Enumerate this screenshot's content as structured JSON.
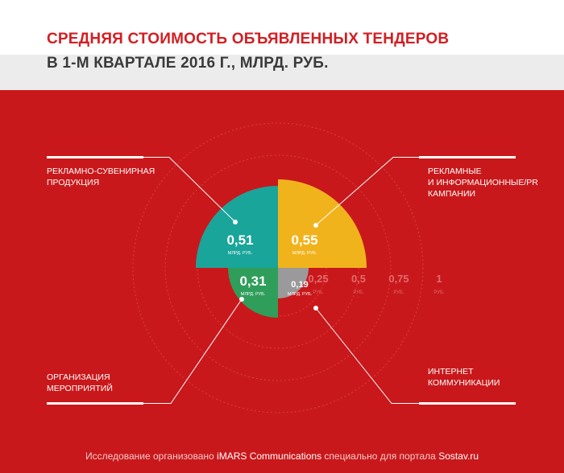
{
  "title_line1": "СРЕДНЯЯ СТОИМОСТЬ ОБЪЯВЛЕННЫХ ТЕНДЕРОВ",
  "title_line2": "В 1-М КВАРТАЛЕ 2016 Г., МЛРД. РУБ.",
  "footer": {
    "prefix": "Исследование организовано ",
    "org": "iMARS Communications",
    "middle": " специально для портала ",
    "site": "Sostav.ru"
  },
  "colors": {
    "background": "#cf1a1d",
    "teal": "#1aa59b",
    "yellow": "#f1b31c",
    "green": "#2f9e5a",
    "gray": "#9a9a9a"
  },
  "chart_data": {
    "type": "polar-area",
    "unit": "МЛРД. РУБ.",
    "max": 1,
    "slices": [
      {
        "label": "РЕКЛАМНЫЕ И ИНФОРМАЦИОННЫЕ/PR КАМПАНИИ",
        "label_lines": [
          "РЕКЛАМНЫЕ",
          "И ИНФОРМАЦИОННЫЕ/PR",
          "КАМПАНИИ"
        ],
        "value": 0.55,
        "value_text": "0,55",
        "color": "#f1b31c",
        "quadrant": "top-right"
      },
      {
        "label": "РЕКЛАМНО-СУВЕНИРНАЯ ПРОДУКЦИЯ",
        "label_lines": [
          "РЕКЛАМНО-СУВЕНИРНАЯ",
          "ПРОДУКЦИЯ"
        ],
        "value": 0.51,
        "value_text": "0,51",
        "color": "#1aa59b",
        "quadrant": "top-left"
      },
      {
        "label": "ОРГАНИЗАЦИЯ МЕРОПРИЯТИЙ",
        "label_lines": [
          "ОРГАНИЗАЦИЯ",
          "МЕРОПРИЯТИЙ"
        ],
        "value": 0.31,
        "value_text": "0,31",
        "color": "#2f9e5a",
        "quadrant": "bottom-left"
      },
      {
        "label": "ИНТЕРНЕТ КОММУНИКАЦИИ",
        "label_lines": [
          "ИНТЕРНЕТ",
          "КОММУНИКАЦИИ"
        ],
        "value": 0.19,
        "value_text": "0,19",
        "color": "#9a9a9a",
        "quadrant": "bottom-right"
      }
    ],
    "value_unit_text": "МЛРД. РУБ.",
    "scale_ticks": [
      {
        "value": 0.25,
        "text": "0,25"
      },
      {
        "value": 0.5,
        "text": "0,5"
      },
      {
        "value": 0.75,
        "text": "0,75"
      },
      {
        "value": 1,
        "text": "1"
      }
    ],
    "tick_unit_text": "РУБ."
  }
}
